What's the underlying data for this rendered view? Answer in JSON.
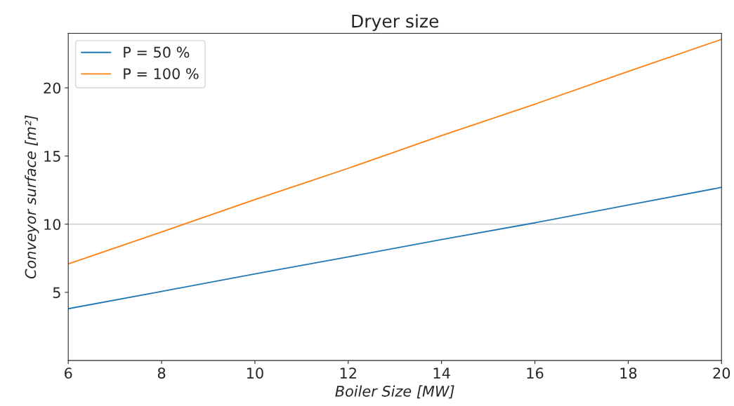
{
  "chart_data": {
    "type": "line",
    "title": "Dryer size",
    "xlabel": "Boiler Size [MW]",
    "ylabel": "Conveyor surface [m²]",
    "x": [
      6,
      8,
      10,
      12,
      14,
      16,
      18,
      20
    ],
    "series": [
      {
        "name": "P = 50 %",
        "color": "#1f77b4",
        "values": [
          3.8,
          5.07,
          6.35,
          7.6,
          8.87,
          10.1,
          11.4,
          12.7
        ]
      },
      {
        "name": "P = 100 %",
        "color": "#ff7f0e",
        "values": [
          7.08,
          9.43,
          11.8,
          14.1,
          16.5,
          18.8,
          21.2,
          23.55
        ]
      }
    ],
    "xlim": [
      6,
      20
    ],
    "ylim": [
      0,
      24
    ],
    "xticks": [
      6,
      8,
      10,
      12,
      14,
      16,
      18,
      20
    ],
    "yticks": [
      5,
      10,
      15,
      20
    ],
    "ref_lines": [
      {
        "axis": "y",
        "value": 10,
        "label": null,
        "color": "#d3d3d3"
      }
    ],
    "grid": false,
    "legend": "top left",
    "marker": "none",
    "line_style": "solid"
  }
}
